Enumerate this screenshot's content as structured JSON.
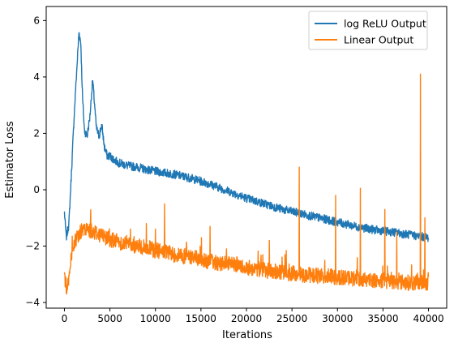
{
  "chart_data": {
    "type": "line",
    "xlabel": "Iterations",
    "ylabel": "Estimator Loss",
    "xlim": [
      -2000,
      42000
    ],
    "ylim": [
      -4.2,
      6.5
    ],
    "xticks": [
      0,
      5000,
      10000,
      15000,
      20000,
      25000,
      30000,
      35000,
      40000
    ],
    "yticks": [
      -4,
      -2,
      0,
      2,
      4,
      6
    ],
    "legend_position": "top-right",
    "grid": false,
    "series": [
      {
        "name": "log ReLU Output",
        "color": "#1f77b4",
        "x": [
          0,
          200,
          500,
          800,
          1100,
          1400,
          1600,
          1800,
          2000,
          2200,
          2500,
          2800,
          3100,
          3300,
          3500,
          3800,
          4100,
          4400,
          4700,
          5000,
          5500,
          6000,
          7000,
          8000,
          9000,
          10000,
          12000,
          14000,
          16000,
          18000,
          20000,
          22000,
          24000,
          26000,
          28000,
          30000,
          32000,
          34000,
          36000,
          38000,
          40000
        ],
        "y": [
          -0.8,
          -1.7,
          -1.2,
          0.8,
          2.8,
          4.5,
          5.6,
          5.2,
          3.2,
          2.1,
          1.9,
          2.6,
          3.9,
          3.1,
          2.2,
          1.9,
          2.3,
          1.5,
          1.2,
          1.2,
          1.05,
          0.95,
          0.85,
          0.8,
          0.72,
          0.65,
          0.55,
          0.4,
          0.2,
          -0.05,
          -0.3,
          -0.5,
          -0.7,
          -0.85,
          -1.0,
          -1.15,
          -1.3,
          -1.42,
          -1.5,
          -1.6,
          -1.7
        ],
        "noise": 0.15
      },
      {
        "name": "Linear Output",
        "color": "#ff7f0e",
        "x": [
          0,
          200,
          500,
          800,
          1100,
          1500,
          2000,
          2500,
          3000,
          4000,
          5000,
          6000,
          8000,
          10000,
          12000,
          14000,
          16000,
          18000,
          20000,
          22000,
          24000,
          26000,
          28000,
          30000,
          32000,
          34000,
          36000,
          38000,
          40000
        ],
        "y": [
          -3.0,
          -3.5,
          -3.1,
          -2.4,
          -1.9,
          -1.6,
          -1.45,
          -1.42,
          -1.45,
          -1.6,
          -1.75,
          -1.85,
          -2.0,
          -2.15,
          -2.3,
          -2.4,
          -2.55,
          -2.65,
          -2.75,
          -2.85,
          -2.95,
          -3.0,
          -3.05,
          -3.1,
          -3.15,
          -3.2,
          -3.25,
          -3.3,
          -3.3
        ],
        "noise": 0.28,
        "spikes": [
          {
            "x": 9000,
            "y": -1.2
          },
          {
            "x": 11000,
            "y": -0.5
          },
          {
            "x": 16000,
            "y": -1.3
          },
          {
            "x": 22500,
            "y": -1.8
          },
          {
            "x": 25800,
            "y": 0.8
          },
          {
            "x": 29800,
            "y": -0.2
          },
          {
            "x": 32500,
            "y": 0.05
          },
          {
            "x": 35200,
            "y": -0.7
          },
          {
            "x": 36500,
            "y": -1.5
          },
          {
            "x": 39100,
            "y": 4.1
          },
          {
            "x": 39600,
            "y": -1.0
          }
        ]
      }
    ]
  }
}
